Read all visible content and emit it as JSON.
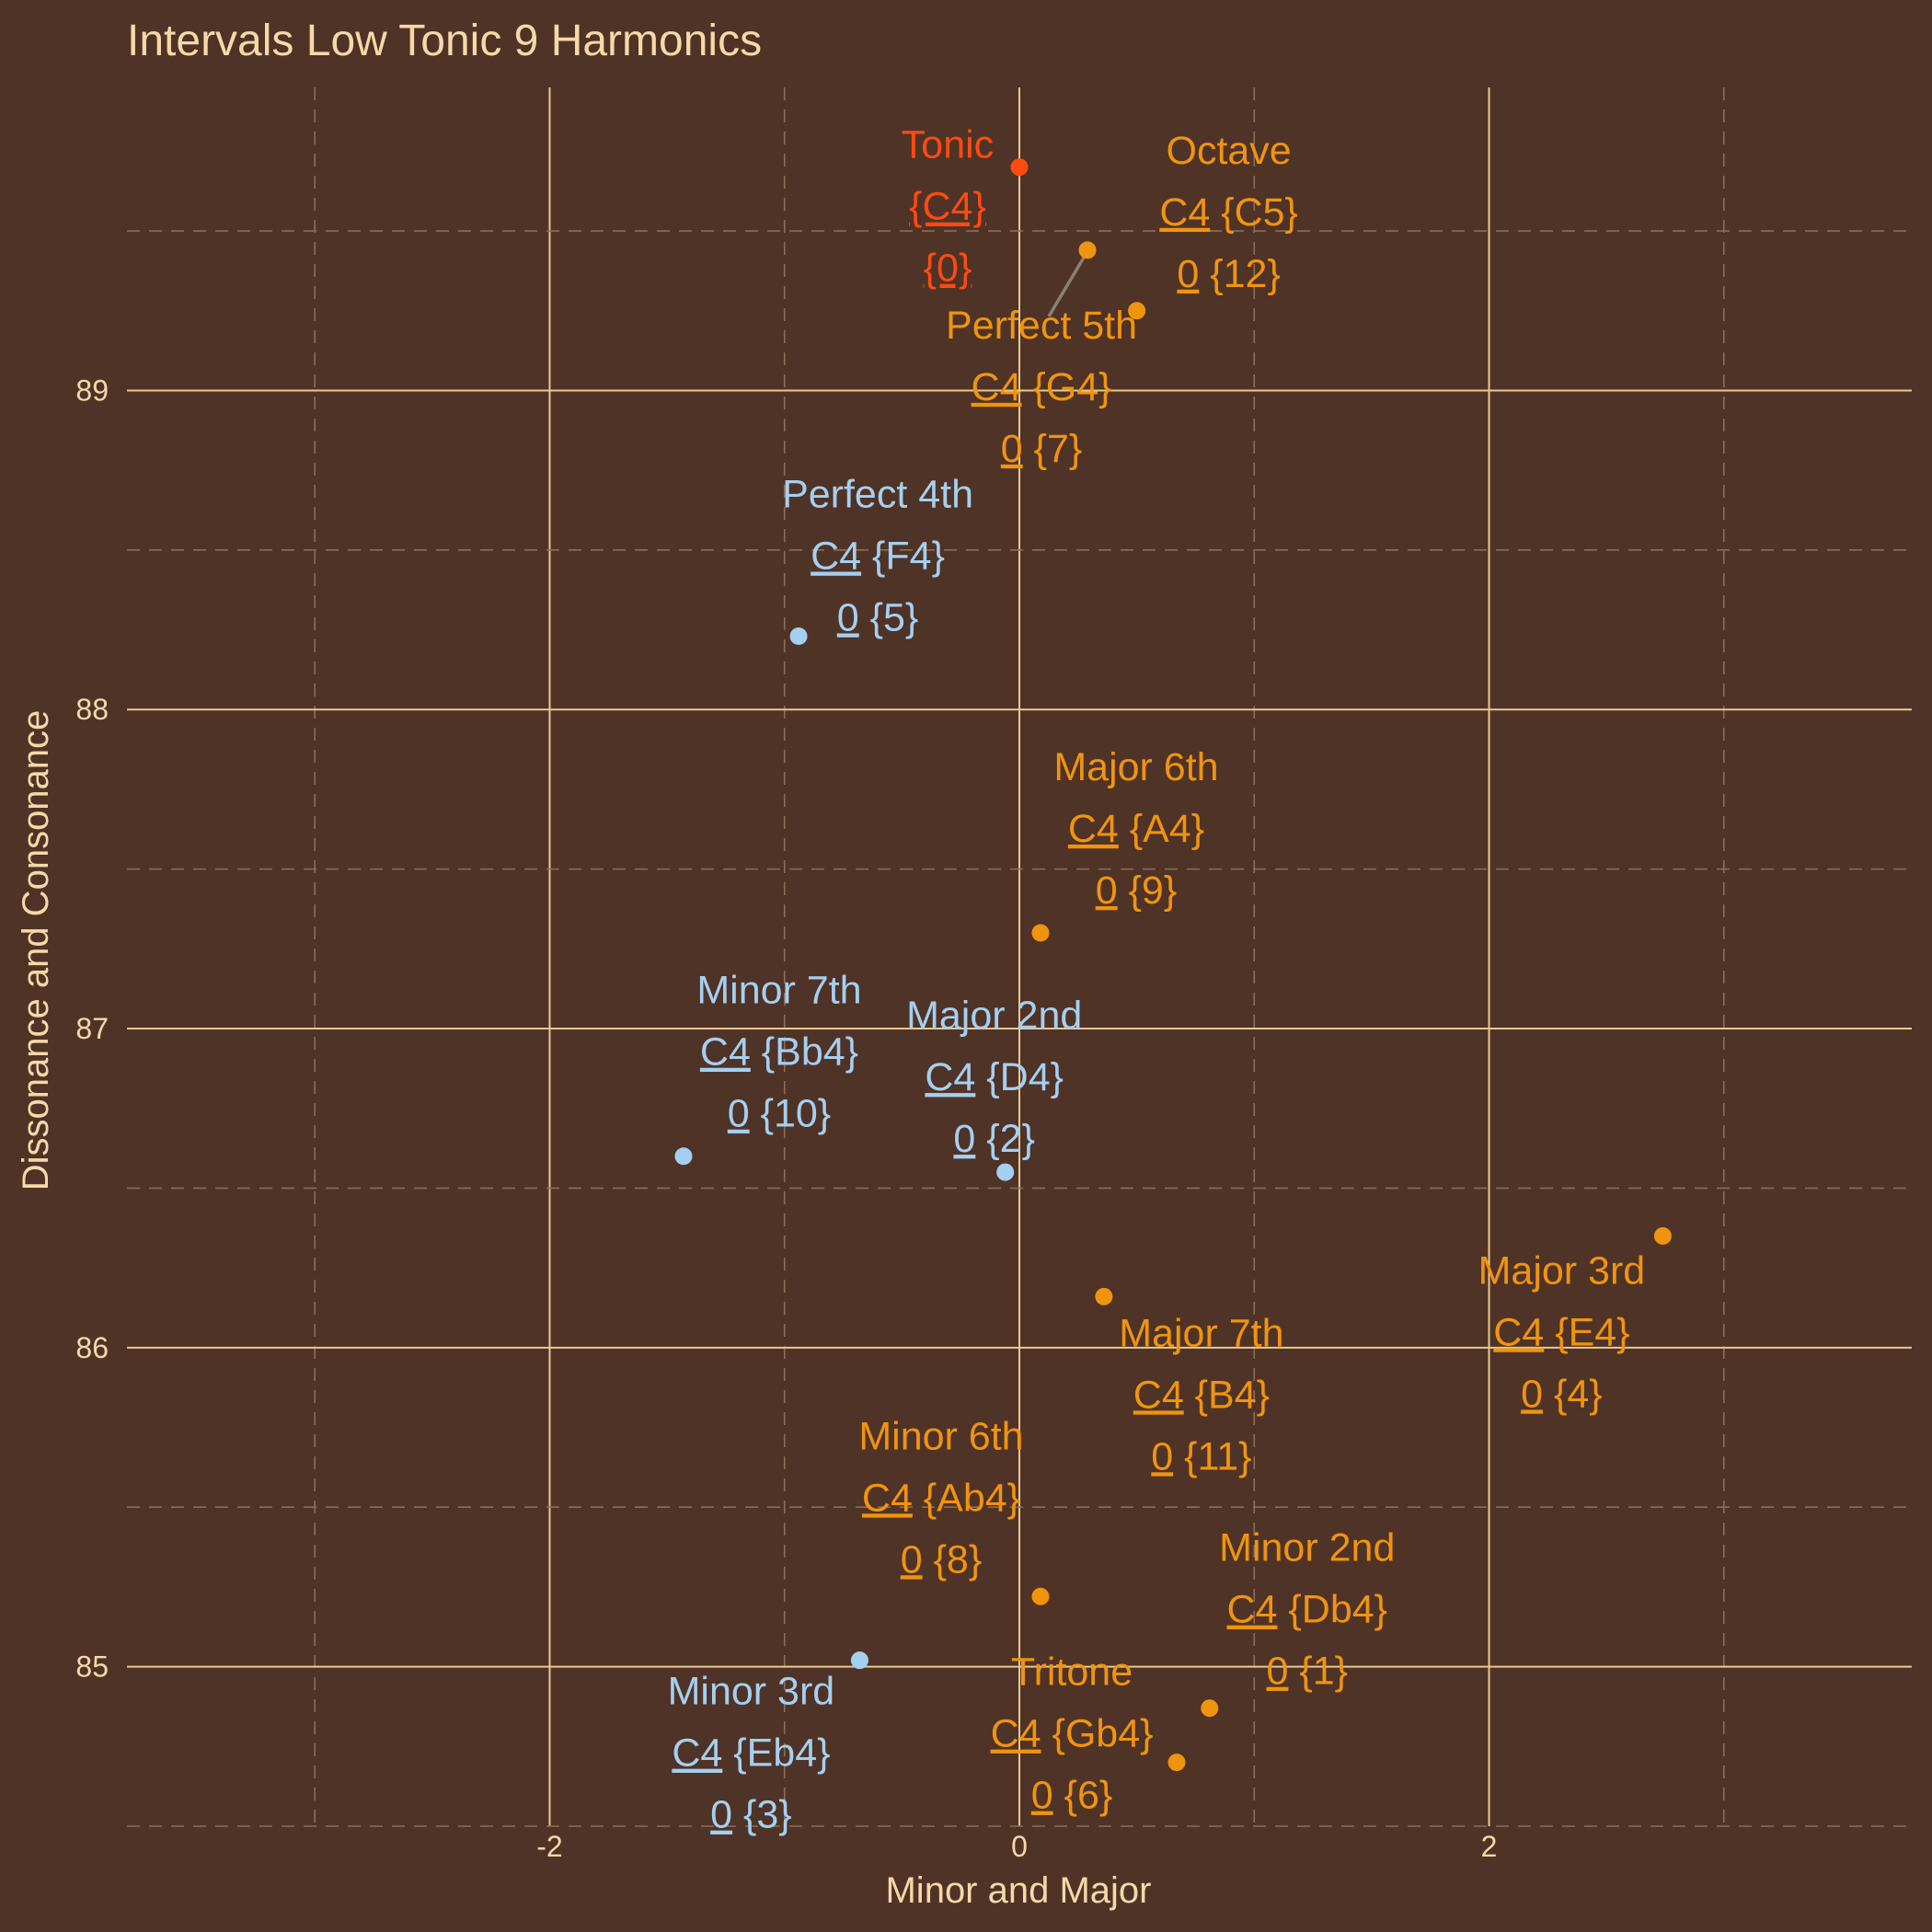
{
  "chart_data": {
    "type": "scatter",
    "title": "Intervals Low Tonic 9 Harmonics",
    "xlabel": "Minor and Major",
    "ylabel": "Dissonance and Consonance",
    "xlim": [
      -3.8,
      3.8
    ],
    "ylim": [
      84.5,
      89.95
    ],
    "x_ticks": [
      -2,
      0,
      2
    ],
    "x_tick_labels": [
      "-2",
      "0",
      "2"
    ],
    "y_ticks": [
      85,
      86,
      87,
      88,
      89
    ],
    "y_tick_labels": [
      "85",
      "86",
      "87",
      "88",
      "89"
    ],
    "grid": true,
    "colors": {
      "background": "#4f3326",
      "text": "#f5d9a8",
      "tonic": "#ff4a12",
      "major": "#f0940f",
      "minor": "#a5cff0",
      "leader": "#8a8070"
    },
    "points": [
      {
        "name": "Tonic",
        "x": 0.0,
        "y": 89.7,
        "group": "tonic",
        "line2_a": "",
        "line2_b": "{C4}",
        "line3_a": "",
        "line3_b": "{0}"
      },
      {
        "name": "Octave",
        "x": 0.5,
        "y": 89.25,
        "group": "major",
        "line2_a": "C4",
        "line2_b": " {C5}",
        "line3_a": "0",
        "line3_b": " {12}"
      },
      {
        "name": "Perfect 5th",
        "x": 0.29,
        "y": 89.44,
        "group": "major",
        "line2_a": "C4",
        "line2_b": " {G4}",
        "line3_a": "0",
        "line3_b": " {7}"
      },
      {
        "name": "Perfect 4th",
        "x": -0.94,
        "y": 88.23,
        "group": "minor",
        "line2_a": "C4",
        "line2_b": " {F4}",
        "line3_a": "0",
        "line3_b": " {5}"
      },
      {
        "name": "Major 6th",
        "x": 0.09,
        "y": 87.3,
        "group": "major",
        "line2_a": "C4",
        "line2_b": " {A4}",
        "line3_a": "0",
        "line3_b": " {9}"
      },
      {
        "name": "Minor 7th",
        "x": -1.43,
        "y": 86.6,
        "group": "minor",
        "line2_a": "C4",
        "line2_b": " {Bb4}",
        "line3_a": "0",
        "line3_b": " {10}"
      },
      {
        "name": "Major 2nd",
        "x": -0.06,
        "y": 86.55,
        "group": "minor",
        "line2_a": "C4",
        "line2_b": " {D4}",
        "line3_a": "0",
        "line3_b": " {2}"
      },
      {
        "name": "Major 3rd",
        "x": 2.74,
        "y": 86.35,
        "group": "major",
        "line2_a": "C4",
        "line2_b": " {E4}",
        "line3_a": "0",
        "line3_b": " {4}"
      },
      {
        "name": "Major 7th",
        "x": 0.36,
        "y": 86.16,
        "group": "major",
        "line2_a": "C4",
        "line2_b": " {B4}",
        "line3_a": "0",
        "line3_b": " {11}"
      },
      {
        "name": "Minor 6th",
        "x": 0.09,
        "y": 85.22,
        "group": "major",
        "line2_a": "C4",
        "line2_b": " {Ab4}",
        "line3_a": "0",
        "line3_b": " {8}"
      },
      {
        "name": "Minor 3rd",
        "x": -0.68,
        "y": 85.02,
        "group": "minor",
        "line2_a": "C4",
        "line2_b": " {Eb4}",
        "line3_a": "0",
        "line3_b": " {3}"
      },
      {
        "name": "Minor 2nd",
        "x": 0.81,
        "y": 84.87,
        "group": "major",
        "line2_a": "C4",
        "line2_b": " {Db4}",
        "line3_a": "0",
        "line3_b": " {1}"
      },
      {
        "name": "Tritone",
        "x": 0.67,
        "y": 84.7,
        "group": "major",
        "line2_a": "C4",
        "line2_b": " {Gb4}",
        "line3_a": "0",
        "line3_b": " {6}"
      }
    ]
  }
}
